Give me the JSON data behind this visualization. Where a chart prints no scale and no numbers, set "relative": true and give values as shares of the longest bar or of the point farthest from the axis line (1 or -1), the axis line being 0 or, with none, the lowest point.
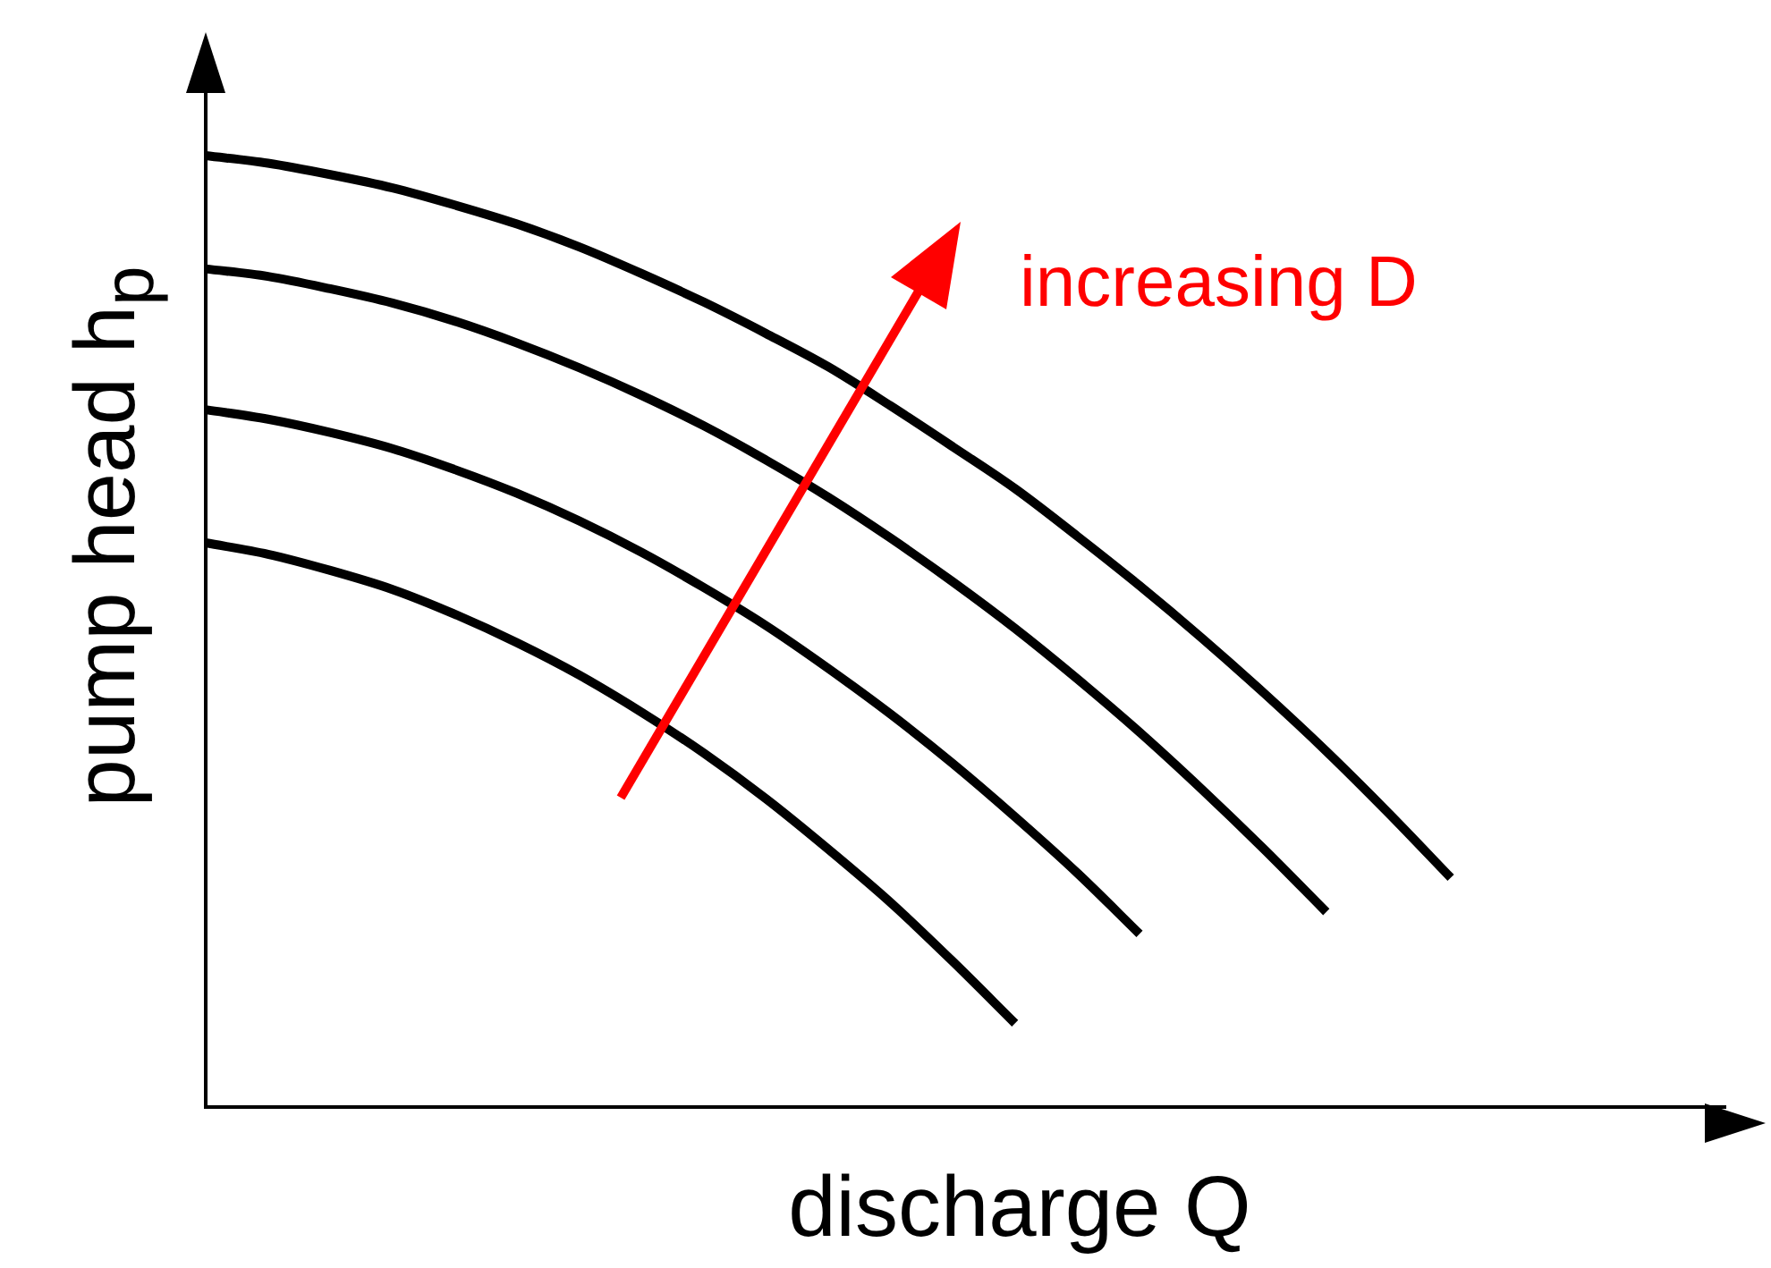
{
  "chart_data": {
    "type": "line",
    "relative": true,
    "xlabel": "discharge Q",
    "ylabel": "pump head h$_{p}$",
    "annotations": [
      "increasing D"
    ],
    "categories": [
      null,
      null,
      null,
      null,
      null,
      null,
      null,
      null,
      null,
      null,
      null,
      null,
      null,
      null,
      null,
      null,
      null,
      null,
      null,
      null,
      null,
      null,
      null,
      null,
      null,
      null
    ],
    "legend": false,
    "marker": "none",
    "line_style": "solid",
    "series": [
      {
        "color": "#000000",
        "values": [
          0.593,
          0.581,
          0.564,
          0.544,
          0.518,
          0.488,
          0.454,
          0.415,
          0.372,
          0.324,
          0.271,
          0.215,
          0.153,
          0.088,
          null,
          null,
          null,
          null,
          null,
          null,
          null,
          null,
          null,
          null,
          null,
          null
        ]
      },
      {
        "color": "#000000",
        "values": [
          0.733,
          0.723,
          0.709,
          0.692,
          0.67,
          0.645,
          0.616,
          0.583,
          0.546,
          0.506,
          0.461,
          0.413,
          0.361,
          0.305,
          0.246,
          0.182,
          null,
          null,
          null,
          null,
          null,
          null,
          null,
          null,
          null,
          null
        ]
      },
      {
        "color": "#000000",
        "values": [
          0.881,
          0.873,
          0.86,
          0.845,
          0.826,
          0.803,
          0.777,
          0.748,
          0.716,
          0.68,
          0.641,
          0.598,
          0.552,
          0.503,
          0.45,
          0.394,
          0.334,
          0.271,
          0.205,
          null,
          null,
          null,
          null,
          null,
          null,
          null
        ]
      },
      {
        "color": "#000000",
        "values": [
          1,
          0.992,
          0.98,
          0.966,
          0.948,
          0.928,
          0.904,
          0.876,
          0.846,
          0.813,
          0.778,
          0.737,
          0.694,
          0.65,
          0.6,
          0.548,
          0.493,
          0.435,
          0.374,
          0.309,
          0.241,
          null,
          null,
          null,
          null,
          null
        ]
      }
    ]
  }
}
